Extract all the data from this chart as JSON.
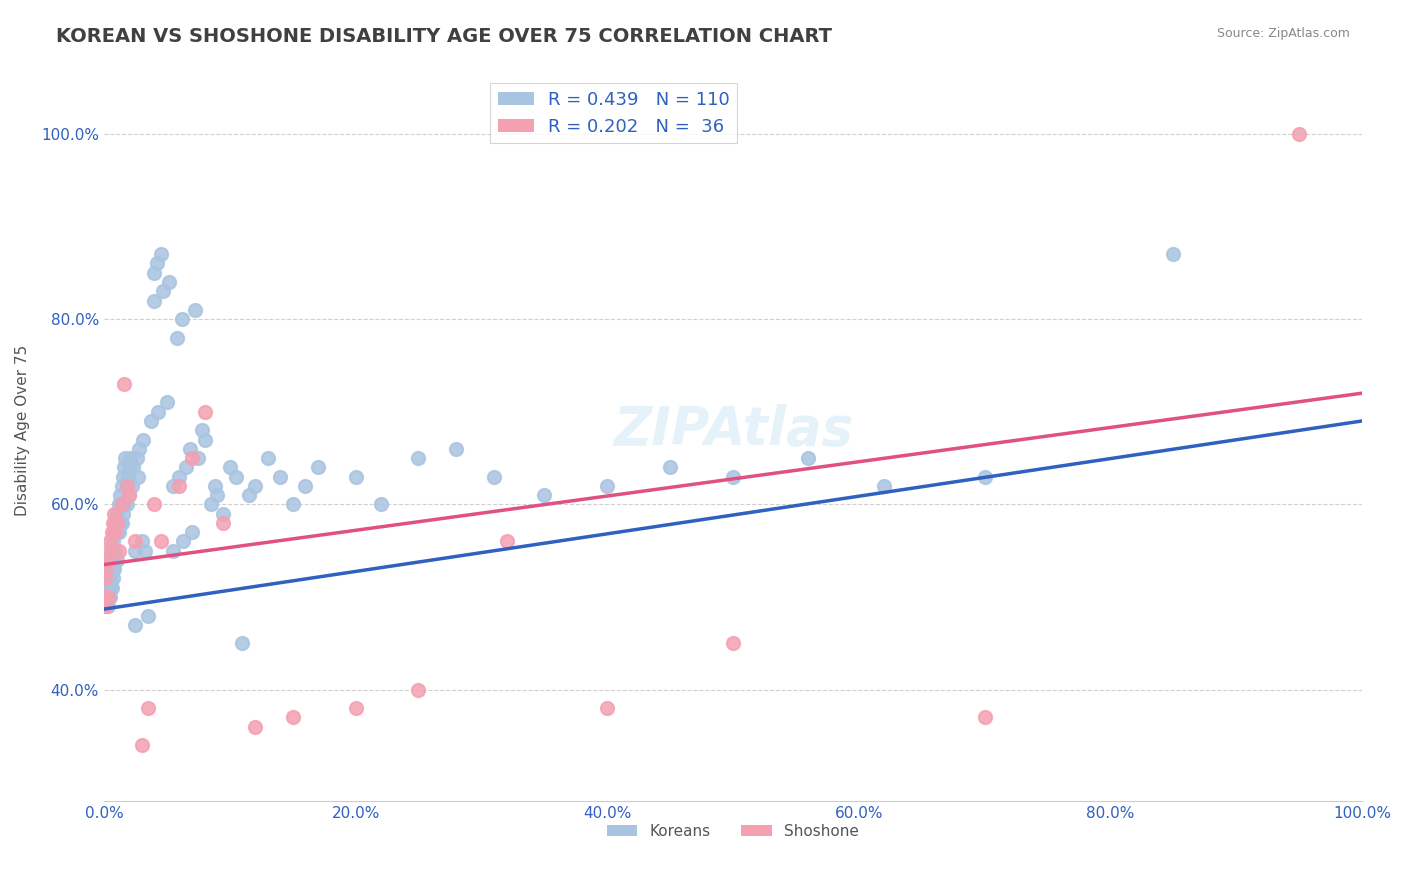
{
  "title": "KOREAN VS SHOSHONE DISABILITY AGE OVER 75 CORRELATION CHART",
  "source_text": "Source: ZipAtlas.com",
  "xlabel": "",
  "ylabel": "Disability Age Over 75",
  "xlim": [
    0,
    1
  ],
  "ylim": [
    0.28,
    1.08
  ],
  "xticks": [
    0.0,
    0.2,
    0.4,
    0.6,
    0.8,
    1.0
  ],
  "yticks": [
    0.4,
    0.6,
    0.8,
    1.0
  ],
  "xticklabels": [
    "0.0%",
    "20.0%",
    "40.0%",
    "60.0%",
    "80.0%",
    "100.0%"
  ],
  "yticklabels": [
    "40.0%",
    "60.0%",
    "80.0%",
    "100.0%"
  ],
  "legend_korean_R": "0.439",
  "legend_korean_N": "110",
  "legend_shoshone_R": "0.202",
  "legend_shoshone_N": " 36",
  "korean_color": "#a8c4e0",
  "shoshone_color": "#f4a0b0",
  "korean_line_color": "#3060c0",
  "shoshone_line_color": "#e05080",
  "legend_R_color": "#3060c0",
  "title_color": "#404040",
  "axis_label_color": "#3060c0",
  "watermark": "ZIPAtlas",
  "background_color": "#ffffff",
  "grid_color": "#d0d0d0",
  "korean_scatter": {
    "x": [
      0.001,
      0.001,
      0.001,
      0.001,
      0.002,
      0.002,
      0.002,
      0.003,
      0.003,
      0.003,
      0.003,
      0.004,
      0.004,
      0.004,
      0.005,
      0.005,
      0.005,
      0.005,
      0.006,
      0.006,
      0.006,
      0.007,
      0.007,
      0.007,
      0.008,
      0.008,
      0.008,
      0.009,
      0.009,
      0.01,
      0.01,
      0.01,
      0.011,
      0.012,
      0.012,
      0.013,
      0.013,
      0.014,
      0.014,
      0.015,
      0.015,
      0.016,
      0.016,
      0.017,
      0.018,
      0.018,
      0.019,
      0.02,
      0.02,
      0.021,
      0.022,
      0.023,
      0.025,
      0.025,
      0.026,
      0.027,
      0.028,
      0.03,
      0.031,
      0.033,
      0.035,
      0.037,
      0.04,
      0.04,
      0.042,
      0.043,
      0.045,
      0.047,
      0.05,
      0.052,
      0.055,
      0.055,
      0.058,
      0.06,
      0.062,
      0.063,
      0.065,
      0.068,
      0.07,
      0.072,
      0.075,
      0.078,
      0.08,
      0.085,
      0.088,
      0.09,
      0.095,
      0.1,
      0.105,
      0.11,
      0.115,
      0.12,
      0.13,
      0.14,
      0.15,
      0.16,
      0.17,
      0.2,
      0.22,
      0.25,
      0.28,
      0.31,
      0.35,
      0.4,
      0.45,
      0.5,
      0.56,
      0.62,
      0.7,
      0.85
    ],
    "y": [
      0.52,
      0.51,
      0.5,
      0.49,
      0.51,
      0.5,
      0.49,
      0.52,
      0.51,
      0.5,
      0.49,
      0.53,
      0.52,
      0.5,
      0.54,
      0.52,
      0.51,
      0.5,
      0.55,
      0.53,
      0.51,
      0.56,
      0.54,
      0.52,
      0.57,
      0.55,
      0.53,
      0.58,
      0.55,
      0.59,
      0.57,
      0.54,
      0.58,
      0.6,
      0.57,
      0.61,
      0.58,
      0.62,
      0.58,
      0.63,
      0.59,
      0.64,
      0.6,
      0.65,
      0.62,
      0.6,
      0.63,
      0.64,
      0.61,
      0.65,
      0.62,
      0.64,
      0.55,
      0.47,
      0.65,
      0.63,
      0.66,
      0.56,
      0.67,
      0.55,
      0.48,
      0.69,
      0.85,
      0.82,
      0.86,
      0.7,
      0.87,
      0.83,
      0.71,
      0.84,
      0.62,
      0.55,
      0.78,
      0.63,
      0.8,
      0.56,
      0.64,
      0.66,
      0.57,
      0.81,
      0.65,
      0.68,
      0.67,
      0.6,
      0.62,
      0.61,
      0.59,
      0.64,
      0.63,
      0.45,
      0.61,
      0.62,
      0.65,
      0.63,
      0.6,
      0.62,
      0.64,
      0.63,
      0.6,
      0.65,
      0.66,
      0.63,
      0.61,
      0.62,
      0.64,
      0.63,
      0.65,
      0.62,
      0.63,
      0.87
    ]
  },
  "shoshone_scatter": {
    "x": [
      0.001,
      0.001,
      0.002,
      0.002,
      0.003,
      0.003,
      0.004,
      0.005,
      0.006,
      0.007,
      0.008,
      0.009,
      0.01,
      0.012,
      0.014,
      0.016,
      0.018,
      0.02,
      0.025,
      0.03,
      0.035,
      0.04,
      0.045,
      0.06,
      0.07,
      0.08,
      0.095,
      0.12,
      0.15,
      0.2,
      0.25,
      0.32,
      0.4,
      0.5,
      0.7,
      0.95
    ],
    "y": [
      0.52,
      0.5,
      0.53,
      0.49,
      0.54,
      0.5,
      0.55,
      0.56,
      0.57,
      0.58,
      0.59,
      0.57,
      0.58,
      0.55,
      0.6,
      0.73,
      0.62,
      0.61,
      0.56,
      0.34,
      0.38,
      0.6,
      0.56,
      0.62,
      0.65,
      0.7,
      0.58,
      0.36,
      0.37,
      0.38,
      0.4,
      0.56,
      0.38,
      0.45,
      0.37,
      1.0
    ]
  },
  "korean_line": {
    "x0": 0.0,
    "x1": 1.0,
    "y0": 0.487,
    "y1": 0.69
  },
  "shoshone_line": {
    "x0": 0.0,
    "x1": 1.0,
    "y0": 0.535,
    "y1": 0.72
  }
}
